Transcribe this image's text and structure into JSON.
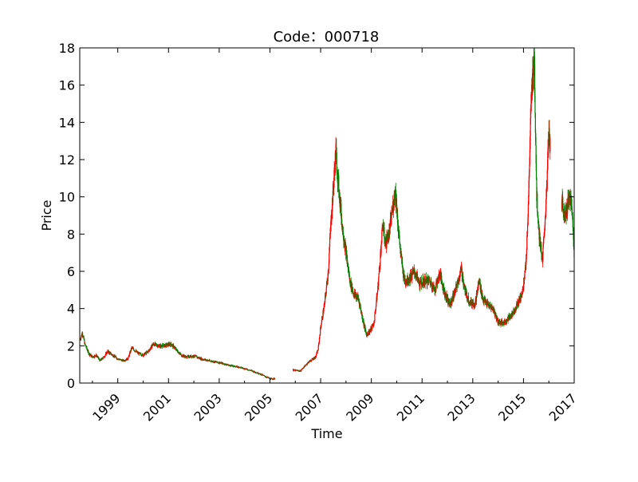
{
  "chart_data": {
    "type": "candlestick",
    "title": "Code：000718",
    "xlabel": "Time",
    "ylabel": "Price",
    "xlim": [
      1997.5,
      2017.0
    ],
    "ylim": [
      0,
      18
    ],
    "x_ticks": [
      "1999",
      "2001",
      "2003",
      "2005",
      "2007",
      "2009",
      "2011",
      "2013",
      "2015",
      "2017"
    ],
    "y_ticks": [
      "0",
      "2",
      "4",
      "6",
      "8",
      "10",
      "12",
      "14",
      "16",
      "18"
    ],
    "up_color": "#ff0000",
    "down_color": "#008000",
    "grid": false,
    "legend": "none",
    "price_path": [
      [
        1997.5,
        2.3
      ],
      [
        1997.6,
        2.7
      ],
      [
        1997.7,
        2.1
      ],
      [
        1997.85,
        1.6
      ],
      [
        1998.0,
        1.4
      ],
      [
        1998.15,
        1.5
      ],
      [
        1998.3,
        1.2
      ],
      [
        1998.45,
        1.4
      ],
      [
        1998.6,
        1.7
      ],
      [
        1998.8,
        1.5
      ],
      [
        1999.0,
        1.3
      ],
      [
        1999.2,
        1.2
      ],
      [
        1999.4,
        1.3
      ],
      [
        1999.55,
        1.9
      ],
      [
        1999.8,
        1.6
      ],
      [
        2000.0,
        1.5
      ],
      [
        2000.2,
        1.7
      ],
      [
        2000.4,
        2.1
      ],
      [
        2000.6,
        2.0
      ],
      [
        2000.8,
        2.0
      ],
      [
        2001.1,
        2.1
      ],
      [
        2001.3,
        1.8
      ],
      [
        2001.5,
        1.5
      ],
      [
        2001.7,
        1.4
      ],
      [
        2002.0,
        1.45
      ],
      [
        2002.3,
        1.3
      ],
      [
        2002.6,
        1.2
      ],
      [
        2003.0,
        1.1
      ],
      [
        2003.4,
        0.95
      ],
      [
        2003.8,
        0.85
      ],
      [
        2004.2,
        0.7
      ],
      [
        2004.6,
        0.5
      ],
      [
        2004.9,
        0.3
      ],
      [
        2005.05,
        0.22
      ],
      [
        2005.2,
        0.25
      ],
      null,
      [
        2005.9,
        0.7
      ],
      [
        2006.2,
        0.65
      ],
      [
        2006.5,
        1.1
      ],
      [
        2006.8,
        1.4
      ],
      [
        2006.9,
        1.8
      ],
      [
        2007.0,
        3.0
      ],
      [
        2007.15,
        4.2
      ],
      [
        2007.3,
        6.0
      ],
      [
        2007.4,
        8.5
      ],
      [
        2007.5,
        10.5
      ],
      [
        2007.6,
        12.5
      ],
      [
        2007.68,
        11.0
      ],
      [
        2007.75,
        10.0
      ],
      [
        2007.85,
        8.5
      ],
      [
        2008.0,
        7.0
      ],
      [
        2008.15,
        5.5
      ],
      [
        2008.3,
        4.8
      ],
      [
        2008.5,
        4.5
      ],
      [
        2008.65,
        3.5
      ],
      [
        2008.8,
        2.6
      ],
      [
        2008.95,
        2.8
      ],
      [
        2009.1,
        3.2
      ],
      [
        2009.25,
        5.0
      ],
      [
        2009.45,
        8.5
      ],
      [
        2009.55,
        7.5
      ],
      [
        2009.7,
        8.0
      ],
      [
        2009.85,
        9.5
      ],
      [
        2009.95,
        10.4
      ],
      [
        2010.05,
        8.5
      ],
      [
        2010.15,
        7.0
      ],
      [
        2010.3,
        5.5
      ],
      [
        2010.5,
        5.6
      ],
      [
        2010.7,
        6.0
      ],
      [
        2010.9,
        5.3
      ],
      [
        2011.1,
        5.5
      ],
      [
        2011.3,
        5.5
      ],
      [
        2011.5,
        5.0
      ],
      [
        2011.7,
        5.9
      ],
      [
        2011.9,
        4.8
      ],
      [
        2012.1,
        4.2
      ],
      [
        2012.3,
        4.9
      ],
      [
        2012.55,
        6.1
      ],
      [
        2012.7,
        4.9
      ],
      [
        2012.9,
        4.3
      ],
      [
        2013.1,
        4.3
      ],
      [
        2013.25,
        5.5
      ],
      [
        2013.4,
        4.5
      ],
      [
        2013.6,
        4.2
      ],
      [
        2013.8,
        4.0
      ],
      [
        2014.0,
        3.3
      ],
      [
        2014.2,
        3.2
      ],
      [
        2014.5,
        3.6
      ],
      [
        2014.75,
        4.2
      ],
      [
        2014.95,
        4.8
      ],
      [
        2015.1,
        6.5
      ],
      [
        2015.2,
        10.0
      ],
      [
        2015.3,
        15.0
      ],
      [
        2015.42,
        17.8
      ],
      [
        2015.52,
        10.0
      ],
      [
        2015.62,
        8.0
      ],
      [
        2015.75,
        6.5
      ],
      [
        2015.9,
        10.0
      ],
      [
        2016.0,
        13.5
      ],
      [
        2016.05,
        12.7
      ],
      null,
      [
        2016.5,
        9.8
      ],
      [
        2016.65,
        9.0
      ],
      [
        2016.8,
        10.0
      ],
      [
        2016.9,
        9.5
      ],
      [
        2016.97,
        8.0
      ],
      [
        2017.0,
        7.0
      ]
    ]
  }
}
